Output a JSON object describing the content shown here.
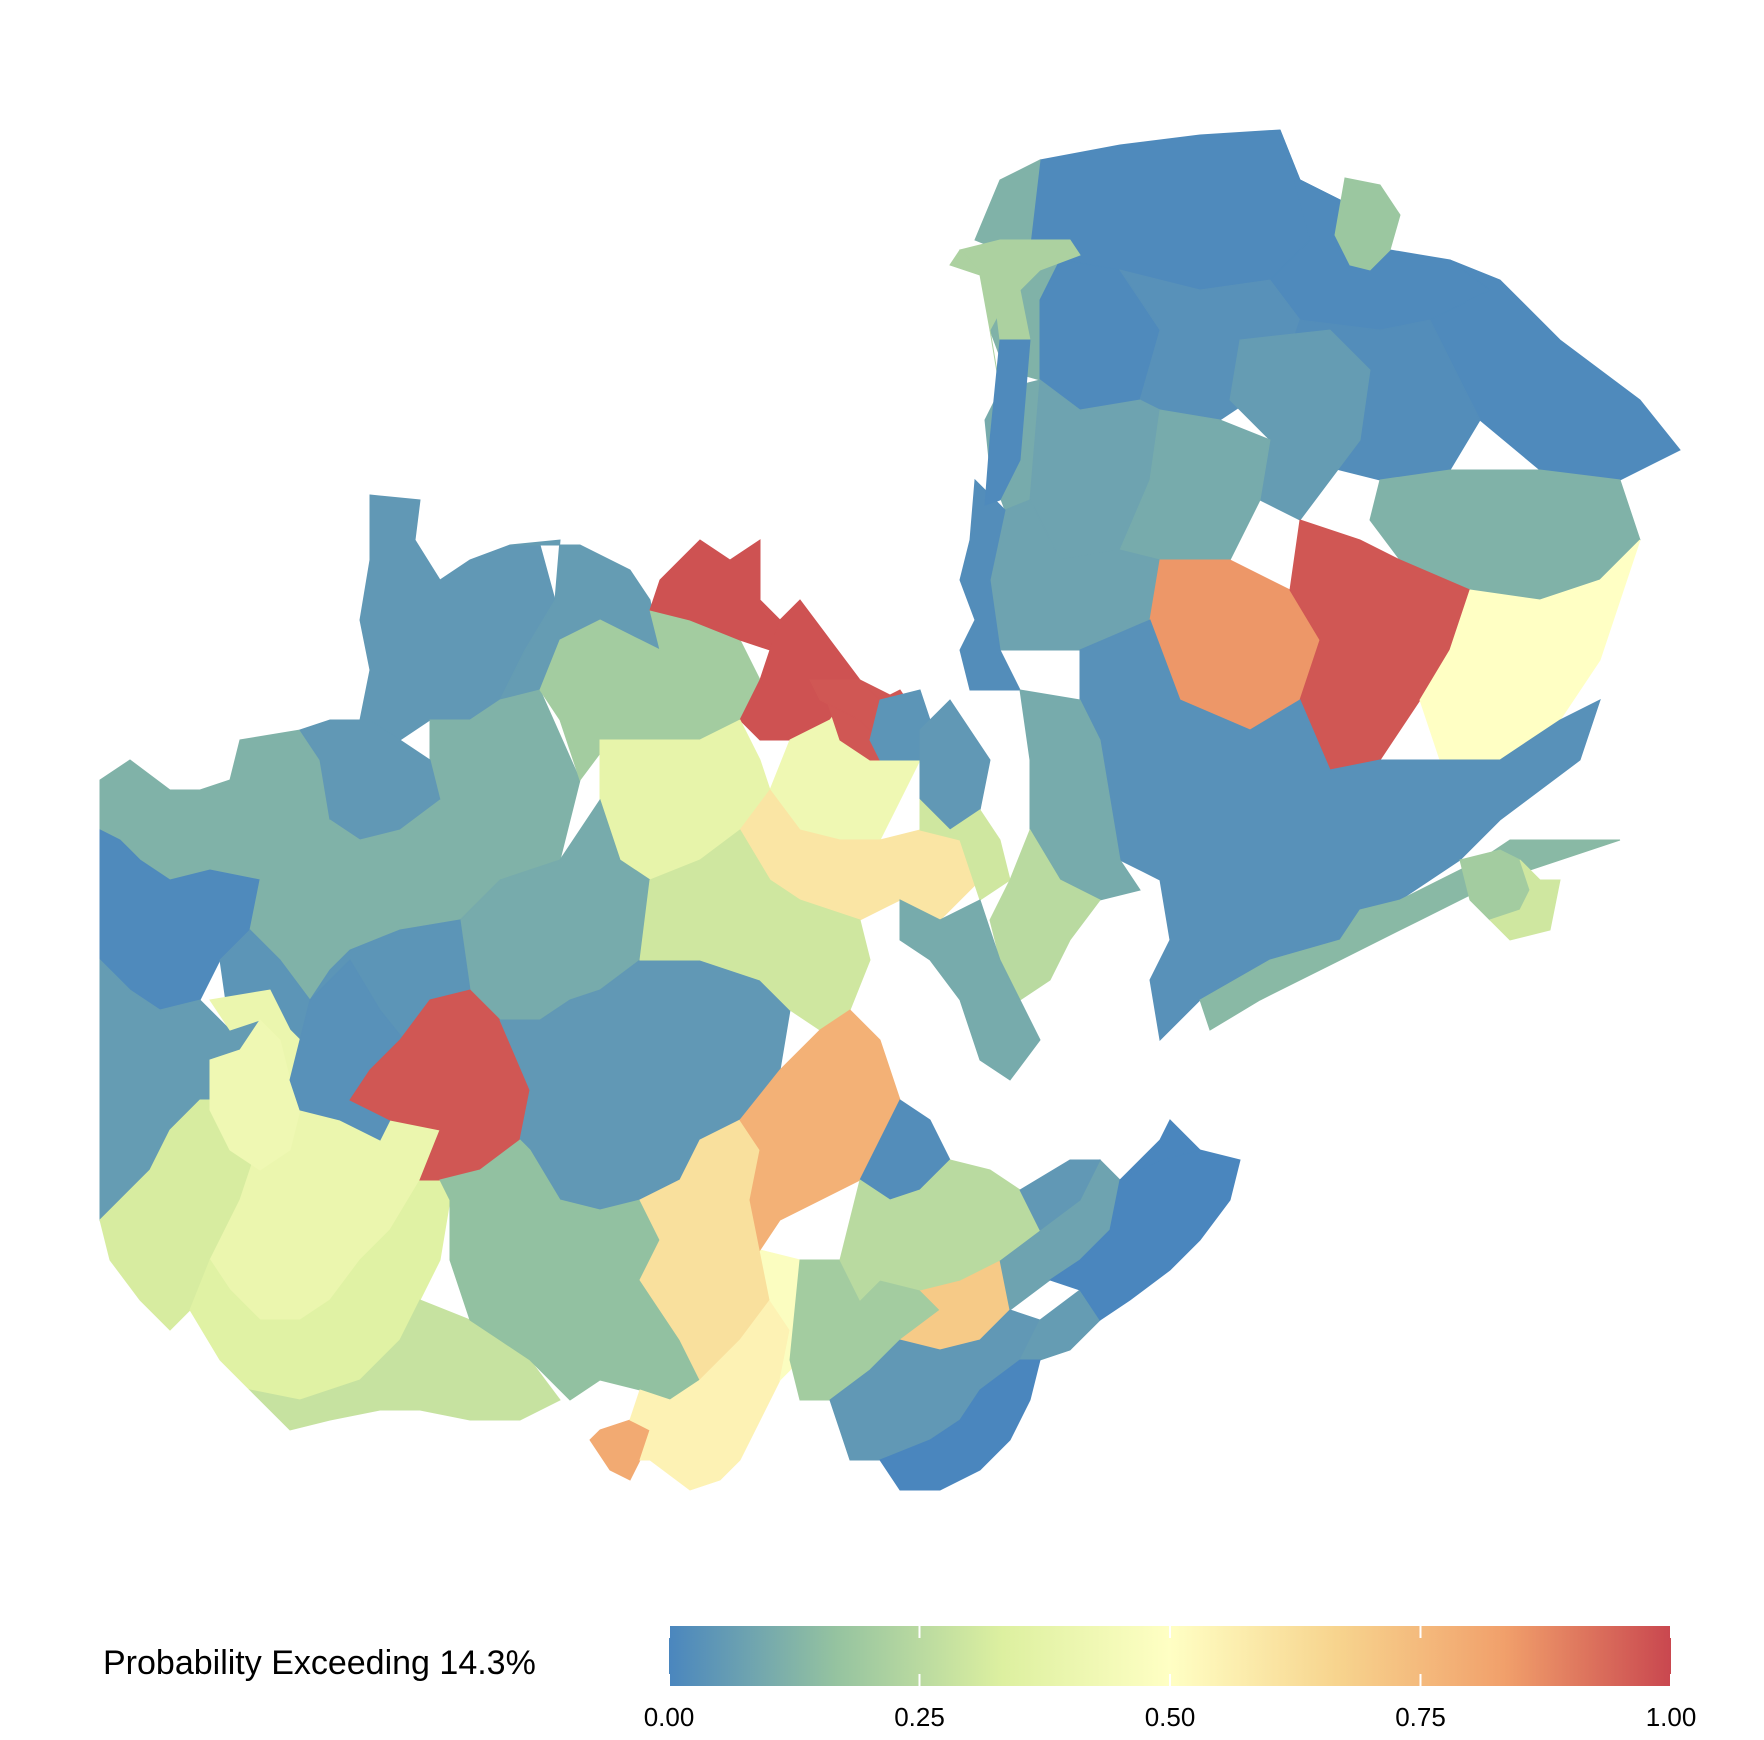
{
  "legend": {
    "title": "Probability Exceeding 14.3%",
    "ticks": [
      {
        "value": 0.0,
        "label": "0.00"
      },
      {
        "value": 0.25,
        "label": "0.25"
      },
      {
        "value": 0.5,
        "label": "0.50"
      },
      {
        "value": 0.75,
        "label": "0.75"
      },
      {
        "value": 1.0,
        "label": "1.00"
      }
    ],
    "color_stops": [
      "#4a86be",
      "#95c3a0",
      "#ddf0a0",
      "#ffffc4",
      "#f7d48e",
      "#f1a06b",
      "#c9474f"
    ]
  },
  "regions": [
    {
      "value": 0.01
    },
    {
      "value": 0.01
    },
    {
      "value": 0.01
    },
    {
      "value": 0.18
    },
    {
      "value": 0.12
    },
    {
      "value": 0.1
    },
    {
      "value": 0.22
    },
    {
      "value": 0.01
    },
    {
      "value": 0.03
    },
    {
      "value": 0.02
    },
    {
      "value": 0.06
    },
    {
      "value": 0.08
    },
    {
      "value": 0.1
    },
    {
      "value": 0.12
    },
    {
      "value": 0.08
    },
    {
      "value": 0.02
    },
    {
      "value": 0.85
    },
    {
      "value": 0.97
    },
    {
      "value": 0.5
    },
    {
      "value": 0.03
    },
    {
      "value": 0.1
    },
    {
      "value": 0.14
    },
    {
      "value": 0.2
    },
    {
      "value": 0.3
    },
    {
      "value": 0.22
    },
    {
      "value": 0.01
    },
    {
      "value": 0.05
    },
    {
      "value": 0.06
    },
    {
      "value": 0.12
    },
    {
      "value": 0.2
    },
    {
      "value": 0.98
    },
    {
      "value": 0.98
    },
    {
      "value": 0.42
    },
    {
      "value": 0.97
    },
    {
      "value": 0.97
    },
    {
      "value": 0.04
    },
    {
      "value": 0.05
    },
    {
      "value": 0.38
    },
    {
      "value": 0.6
    },
    {
      "value": 0.3
    },
    {
      "value": 0.25
    },
    {
      "value": 0.1
    },
    {
      "value": 0.12
    },
    {
      "value": 0.05
    },
    {
      "value": 0.01
    },
    {
      "value": 0.12
    },
    {
      "value": 0.1
    },
    {
      "value": 0.06
    },
    {
      "value": 0.04
    },
    {
      "value": 0.32
    },
    {
      "value": 0.4
    },
    {
      "value": 0.42
    },
    {
      "value": 0.35
    },
    {
      "value": 0.28
    },
    {
      "value": 0.03
    },
    {
      "value": 0.97
    },
    {
      "value": 0.05
    },
    {
      "value": 0.3
    },
    {
      "value": 0.16
    },
    {
      "value": 0.62
    },
    {
      "value": 0.8
    },
    {
      "value": 0.55
    },
    {
      "value": 0.48
    },
    {
      "value": 0.78
    },
    {
      "value": 0.02
    },
    {
      "value": 0.2
    },
    {
      "value": 0.7
    },
    {
      "value": 0.08
    },
    {
      "value": 0.05
    },
    {
      "value": 0.25
    },
    {
      "value": 0.05
    },
    {
      "value": 0.06
    }
  ]
}
